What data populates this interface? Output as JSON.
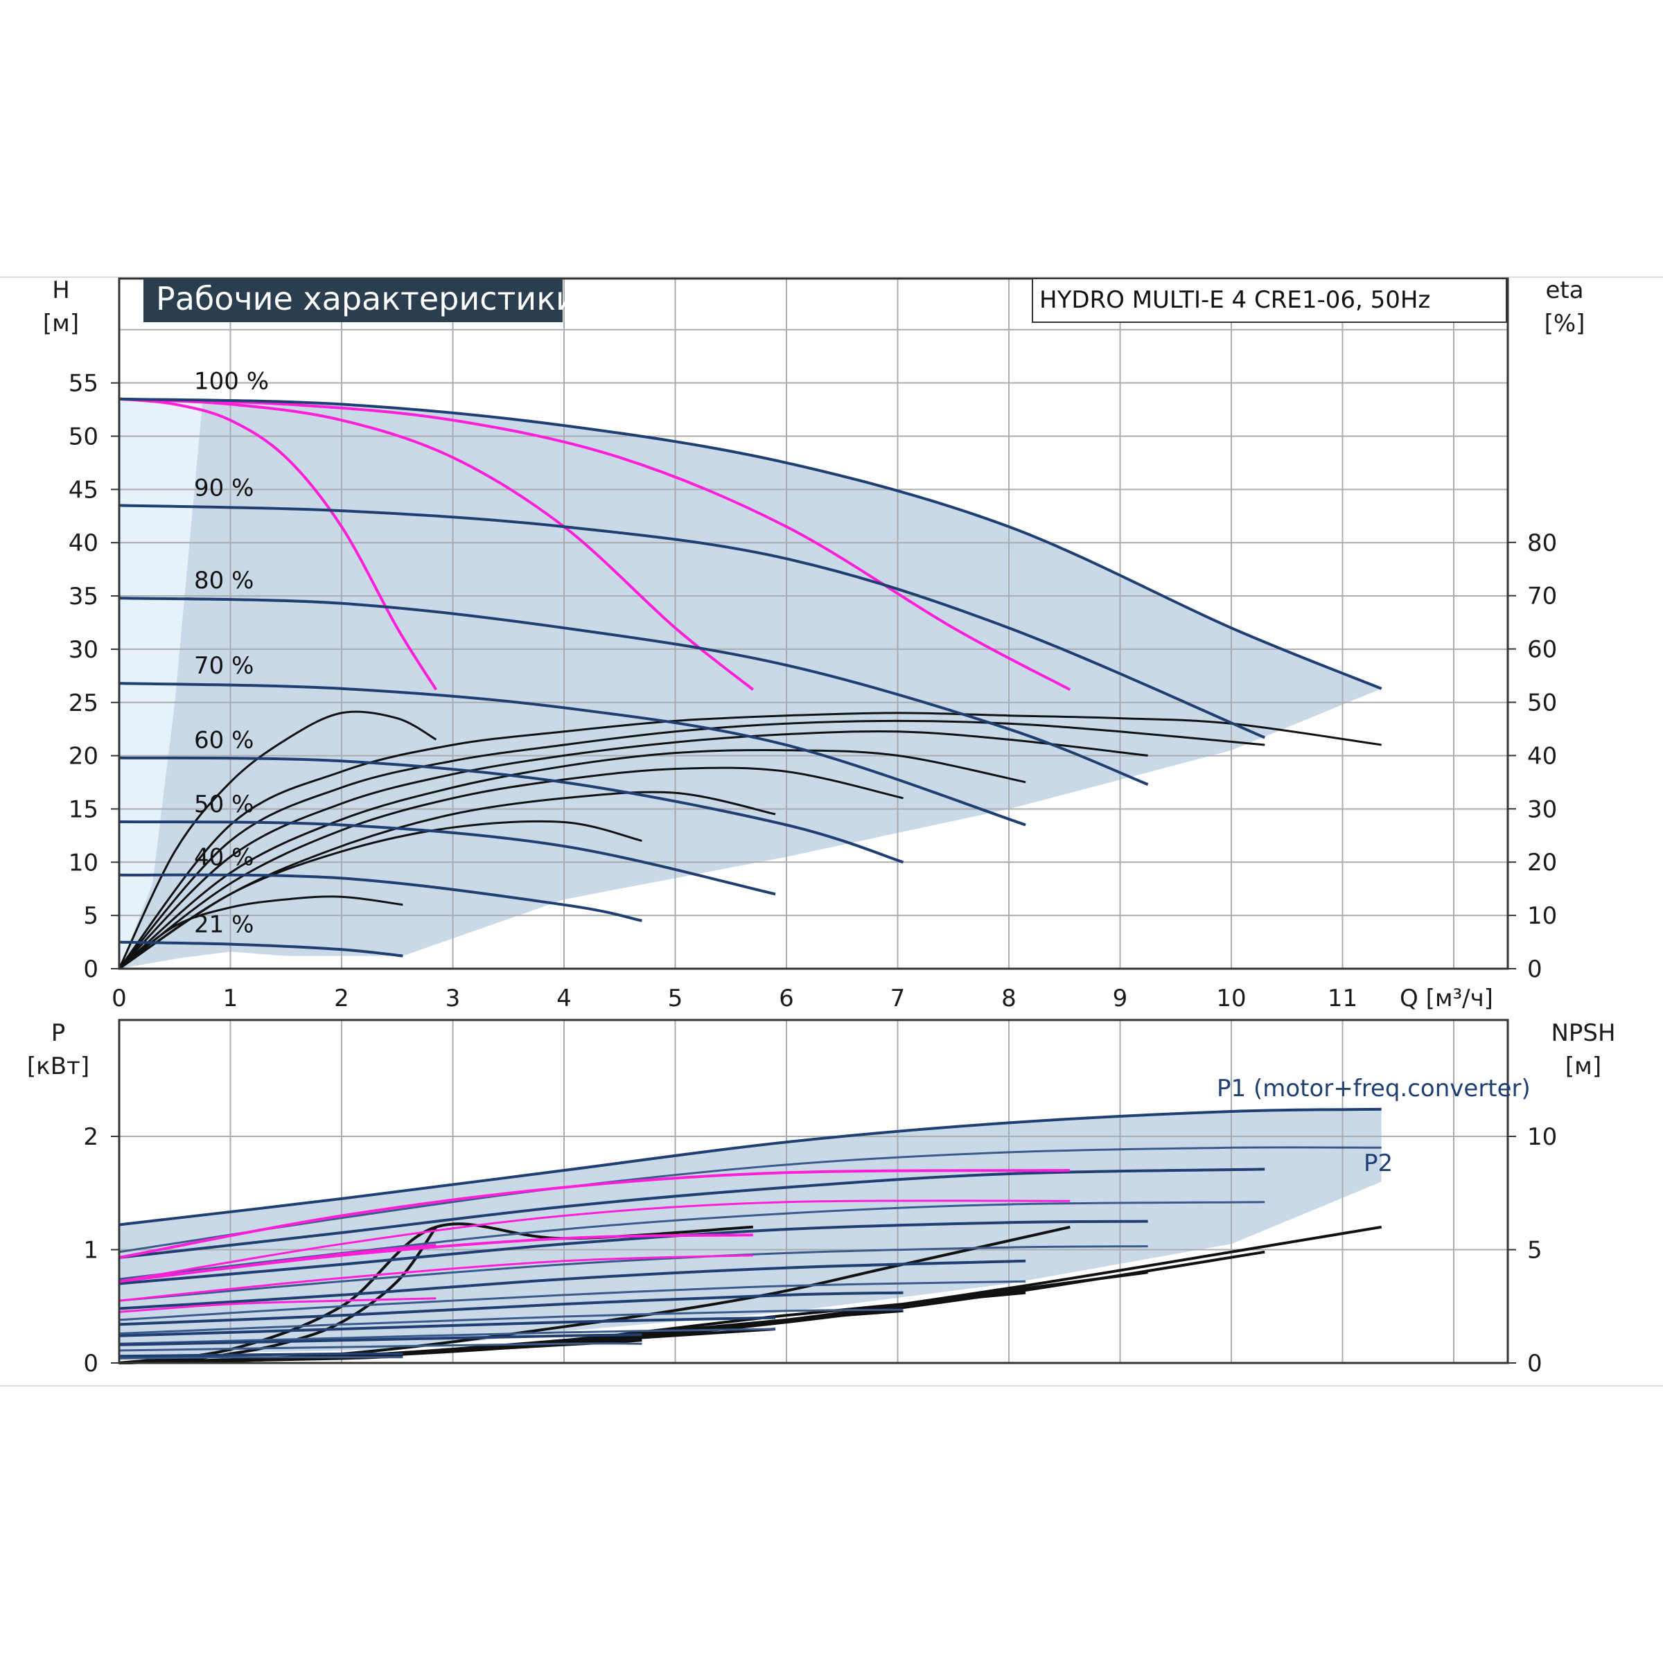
{
  "chart_data": [
    {
      "type": "line",
      "title": "Рабочие характеристики",
      "model": "HYDRO MULTI-E 4 CRE1-06, 50Hz",
      "xlabel": "Q [м³/ч]",
      "ylabel": "H",
      "ylabel_unit": "[м]",
      "y2label": "eta",
      "y2label_unit": "[%]",
      "xlim": [
        0,
        12.5
      ],
      "ylim": [
        0,
        65
      ],
      "y2lim": [
        0,
        100
      ],
      "grid": true,
      "x_ticks": [
        "0",
        "1",
        "2",
        "3",
        "4",
        "5",
        "6",
        "7",
        "8",
        "9",
        "10",
        "11"
      ],
      "y_ticks": [
        "0",
        "5",
        "10",
        "15",
        "20",
        "25",
        "30",
        "35",
        "40",
        "45",
        "50",
        "55"
      ],
      "y2_ticks": [
        "0",
        "10",
        "20",
        "30",
        "40",
        "50",
        "60",
        "70",
        "80"
      ],
      "head_curves": [
        {
          "name": "100 %",
          "x": [
            0,
            2,
            4,
            6,
            8,
            10,
            11.35
          ],
          "y": [
            53.5,
            53,
            51,
            47.5,
            41.5,
            32,
            26.3
          ]
        },
        {
          "name": "90 %",
          "x": [
            0,
            2,
            4,
            6,
            8,
            10.3
          ],
          "y": [
            43.5,
            43,
            41.5,
            38.5,
            32,
            21.7
          ]
        },
        {
          "name": "80 %",
          "x": [
            0,
            2,
            4,
            6,
            8,
            9.25
          ],
          "y": [
            34.8,
            34.3,
            32,
            28.5,
            22.5,
            17.3
          ]
        },
        {
          "name": "70 %",
          "x": [
            0,
            2,
            4,
            6,
            8.15
          ],
          "y": [
            26.8,
            26.3,
            24.5,
            21,
            13.5
          ]
        },
        {
          "name": "60 %",
          "x": [
            0,
            2,
            4,
            6,
            7.05
          ],
          "y": [
            19.8,
            19.5,
            17.5,
            13.5,
            10
          ]
        },
        {
          "name": "50 %",
          "x": [
            0,
            2,
            4,
            5.9
          ],
          "y": [
            13.8,
            13.5,
            11.5,
            7
          ]
        },
        {
          "name": "40 %",
          "x": [
            0,
            2,
            4,
            4.7
          ],
          "y": [
            8.8,
            8.5,
            6,
            4.5
          ]
        },
        {
          "name": "21 %",
          "x": [
            0,
            1,
            2,
            2.55
          ],
          "y": [
            2.5,
            2.3,
            1.8,
            1.2
          ]
        }
      ],
      "system_curves": [
        {
          "x": [
            0,
            0.5,
            1,
            1.5,
            2,
            2.5,
            2.85
          ],
          "y": [
            53.5,
            53,
            51.5,
            48,
            41.5,
            32,
            26.2
          ]
        },
        {
          "x": [
            0,
            1,
            2,
            3,
            4,
            5,
            5.7
          ],
          "y": [
            53.5,
            53,
            51.5,
            48,
            41.5,
            32,
            26.2
          ]
        },
        {
          "x": [
            0,
            1.5,
            3,
            4.5,
            6,
            7.5,
            8.55
          ],
          "y": [
            53.5,
            53,
            51.5,
            48,
            41.5,
            32,
            26.2
          ]
        }
      ],
      "efficiency_curves": [
        {
          "x": [
            0,
            1,
            2,
            3,
            4,
            5,
            6,
            7,
            8,
            9,
            10,
            11.35
          ],
          "eta": [
            0,
            27,
            37,
            42,
            44.5,
            46.5,
            47.5,
            48,
            47.5,
            47,
            46,
            42
          ]
        },
        {
          "x": [
            0,
            1,
            2,
            3,
            4,
            5,
            6,
            7,
            8,
            9,
            10.3
          ],
          "eta": [
            0,
            24,
            34,
            39,
            42,
            44.5,
            46,
            46.5,
            46,
            44.5,
            42
          ]
        },
        {
          "x": [
            0,
            1,
            2,
            3,
            4,
            5,
            6,
            7,
            8,
            9.25
          ],
          "eta": [
            0,
            21,
            31,
            36.5,
            40,
            42.5,
            44,
            44.5,
            43,
            40
          ]
        },
        {
          "x": [
            0,
            1,
            2,
            3,
            4,
            5,
            6,
            7,
            8.15
          ],
          "eta": [
            0,
            18,
            28,
            34,
            38,
            40.5,
            41,
            40,
            35
          ]
        },
        {
          "x": [
            0,
            1,
            2,
            3,
            4,
            5,
            6,
            7.05
          ],
          "eta": [
            0,
            16,
            26,
            32,
            35.5,
            37.5,
            37,
            32
          ]
        },
        {
          "x": [
            0,
            1,
            2,
            3,
            4,
            5,
            5.9
          ],
          "eta": [
            0,
            14,
            23,
            29,
            32,
            33,
            29
          ]
        },
        {
          "x": [
            0,
            1,
            2,
            3,
            4,
            4.7
          ],
          "eta": [
            0,
            14,
            22,
            26.5,
            27.5,
            24
          ]
        },
        {
          "x": [
            0,
            0.5,
            1,
            1.5,
            2,
            2.5,
            2.85
          ],
          "eta": [
            0,
            22,
            35,
            43,
            48,
            47,
            43
          ]
        },
        {
          "x": [
            0,
            0.5,
            1,
            1.5,
            2,
            2.55
          ],
          "eta": [
            0,
            8,
            11.5,
            13,
            13.5,
            12
          ]
        }
      ]
    },
    {
      "type": "line",
      "ylabel": "P",
      "ylabel_unit": "[кВт]",
      "y2label": "NPSH",
      "y2label_unit": "[м]",
      "xlim": [
        0,
        12.5
      ],
      "ylim": [
        0,
        3
      ],
      "y2lim": [
        0,
        15
      ],
      "grid": true,
      "y_ticks": [
        "0",
        "1",
        "2"
      ],
      "y2_ticks": [
        "0",
        "5",
        "10"
      ],
      "p1_label": "P1 (motor+freq.converter)",
      "p2_label": "P2",
      "p1_curves": [
        {
          "x": [
            0,
            2,
            4,
            6,
            8,
            10,
            11.35
          ],
          "y": [
            1.22,
            1.45,
            1.7,
            1.95,
            2.12,
            2.22,
            2.24
          ]
        },
        {
          "x": [
            0,
            2,
            4,
            6,
            8,
            10.3
          ],
          "y": [
            0.93,
            1.15,
            1.38,
            1.55,
            1.67,
            1.71
          ]
        },
        {
          "x": [
            0,
            2,
            4,
            6,
            8,
            9.25
          ],
          "y": [
            0.7,
            0.87,
            1.05,
            1.18,
            1.24,
            1.25
          ]
        },
        {
          "x": [
            0,
            2,
            4,
            6,
            8.15
          ],
          "y": [
            0.48,
            0.6,
            0.74,
            0.84,
            0.9
          ]
        },
        {
          "x": [
            0,
            2,
            4,
            6,
            7.05
          ],
          "y": [
            0.34,
            0.42,
            0.52,
            0.6,
            0.62
          ]
        },
        {
          "x": [
            0,
            2,
            4,
            5.9
          ],
          "y": [
            0.24,
            0.3,
            0.36,
            0.4
          ]
        },
        {
          "x": [
            0,
            2,
            4,
            4.7
          ],
          "y": [
            0.16,
            0.2,
            0.24,
            0.25
          ]
        },
        {
          "x": [
            0,
            1,
            2,
            2.55
          ],
          "y": [
            0.06,
            0.07,
            0.08,
            0.08
          ]
        }
      ],
      "p2_curves": [
        {
          "x": [
            0,
            2,
            4,
            6,
            8,
            10,
            11.35
          ],
          "y": [
            0.98,
            1.28,
            1.55,
            1.75,
            1.86,
            1.9,
            1.9
          ]
        },
        {
          "x": [
            0,
            2,
            4,
            6,
            8,
            10.3
          ],
          "y": [
            0.74,
            0.97,
            1.18,
            1.32,
            1.4,
            1.42
          ]
        },
        {
          "x": [
            0,
            2,
            4,
            6,
            8,
            9.25
          ],
          "y": [
            0.55,
            0.72,
            0.87,
            0.97,
            1.02,
            1.03
          ]
        },
        {
          "x": [
            0,
            2,
            4,
            6,
            8.15
          ],
          "y": [
            0.38,
            0.5,
            0.6,
            0.68,
            0.72
          ]
        },
        {
          "x": [
            0,
            2,
            4,
            6,
            7.05
          ],
          "y": [
            0.26,
            0.34,
            0.41,
            0.46,
            0.47
          ]
        },
        {
          "x": [
            0,
            2,
            4,
            5.9
          ],
          "y": [
            0.17,
            0.22,
            0.27,
            0.3
          ]
        },
        {
          "x": [
            0,
            2,
            4,
            4.7
          ],
          "y": [
            0.11,
            0.14,
            0.17,
            0.17
          ]
        },
        {
          "x": [
            0,
            1,
            2,
            2.55
          ],
          "y": [
            0.04,
            0.05,
            0.05,
            0.05
          ]
        }
      ],
      "p_system_curves": [
        {
          "x": [
            0,
            1,
            2,
            2.85
          ],
          "y": [
            0.72,
            0.84,
            0.96,
            1.04
          ],
          "x2": [
            0,
            1,
            2,
            2.85
          ],
          "y2": [
            0.45,
            0.52,
            0.55,
            0.57
          ]
        },
        {
          "x": [
            0,
            2,
            4,
            5.7
          ],
          "y": [
            0.72,
            0.95,
            1.1,
            1.13
          ],
          "x2": [
            0,
            2,
            4,
            5.7
          ],
          "y2": [
            0.55,
            0.75,
            0.9,
            0.95
          ]
        },
        {
          "x": [
            0,
            2,
            4,
            6,
            8.55
          ],
          "y": [
            0.93,
            1.3,
            1.55,
            1.68,
            1.7
          ],
          "x2": [
            0,
            2,
            4,
            6,
            8.55
          ],
          "y2": [
            0.72,
            1.05,
            1.3,
            1.42,
            1.43
          ]
        }
      ],
      "npsh_curves": [
        {
          "x": [
            0,
            2,
            4,
            6,
            8,
            10,
            11.35
          ],
          "y": [
            0,
            0.25,
            0.9,
            1.9,
            3.3,
            4.9,
            6
          ]
        },
        {
          "x": [
            0,
            2,
            4,
            6,
            8,
            10.3
          ],
          "y": [
            0,
            0.25,
            0.85,
            1.8,
            3.1,
            4.9
          ]
        },
        {
          "x": [
            0,
            2,
            4,
            6,
            8,
            9.25
          ],
          "y": [
            0,
            0.25,
            0.9,
            1.9,
            3.2,
            4
          ]
        },
        {
          "x": [
            0,
            2,
            4,
            6,
            8.15
          ],
          "y": [
            0,
            0.3,
            1,
            2.1,
            3.1
          ]
        },
        {
          "x": [
            0,
            2,
            4,
            6,
            7.05
          ],
          "y": [
            0,
            0.3,
            1,
            1.9,
            2.3
          ]
        },
        {
          "x": [
            0,
            2,
            4,
            5.9
          ],
          "y": [
            0,
            0.3,
            0.9,
            1.5
          ]
        },
        {
          "x": [
            0,
            2,
            4,
            4.7
          ],
          "y": [
            0,
            0.3,
            0.8,
            1
          ]
        },
        {
          "x": [
            0,
            1,
            2,
            2.55
          ],
          "y": [
            0,
            0.1,
            0.2,
            0.3
          ]
        },
        {
          "x": [
            0,
            2,
            4,
            5.7,
            7,
            8.55
          ],
          "y": [
            0,
            0.4,
            1.6,
            2.9,
            4.3,
            6
          ]
        },
        {
          "x": [
            0,
            1,
            2,
            2.85,
            4,
            5.7
          ],
          "y": [
            0,
            0.6,
            2.5,
            6,
            5.5,
            6
          ]
        },
        {
          "x": [
            0,
            0.5,
            1,
            1.5,
            2,
            2.5,
            2.85
          ],
          "y": [
            0,
            0.1,
            0.4,
            0.9,
            1.8,
            3.6,
            6
          ]
        }
      ]
    }
  ]
}
